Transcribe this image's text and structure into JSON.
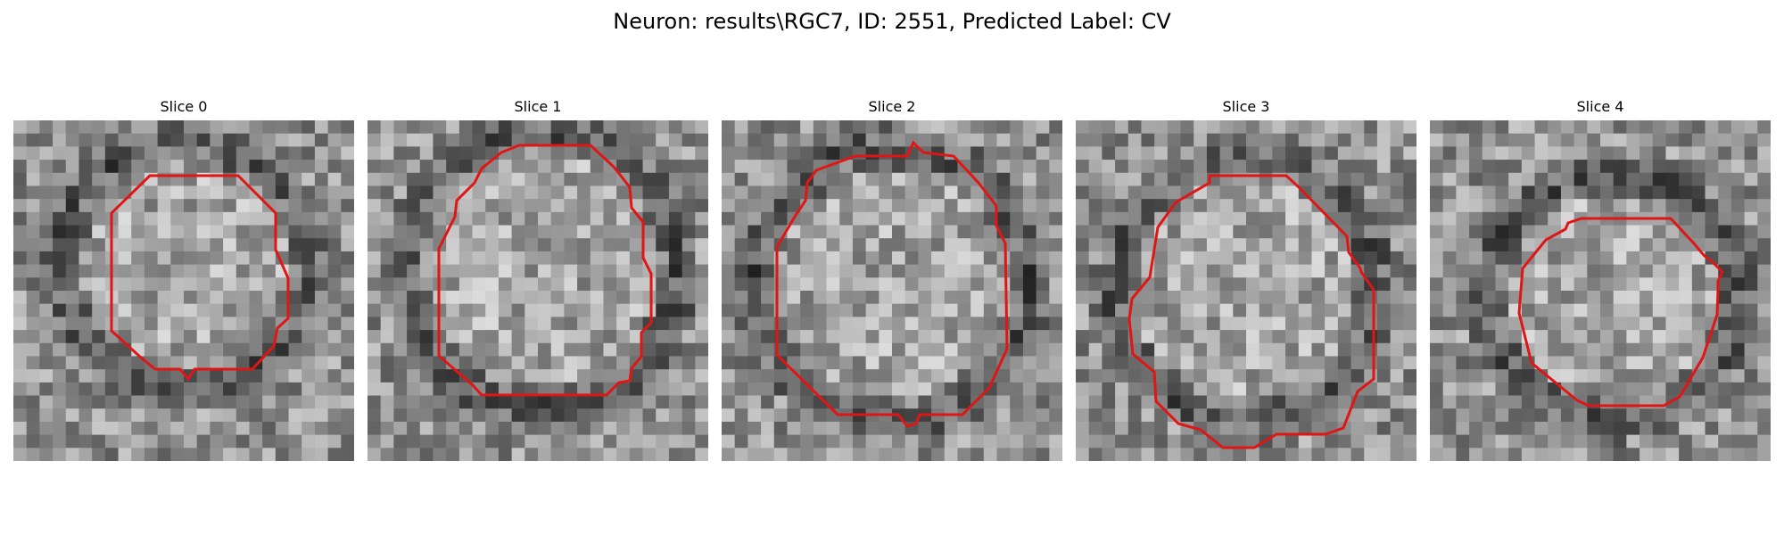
{
  "figure": {
    "title": "Neuron: results\\RGC7, ID: 2551, Predicted Label: CV"
  },
  "colors": {
    "contour": "#e01515",
    "background": "#ffffff"
  },
  "slices": [
    {
      "title": "Slice 0"
    },
    {
      "title": "Slice 1"
    },
    {
      "title": "Slice 2"
    },
    {
      "title": "Slice 3"
    },
    {
      "title": "Slice 4"
    }
  ]
}
